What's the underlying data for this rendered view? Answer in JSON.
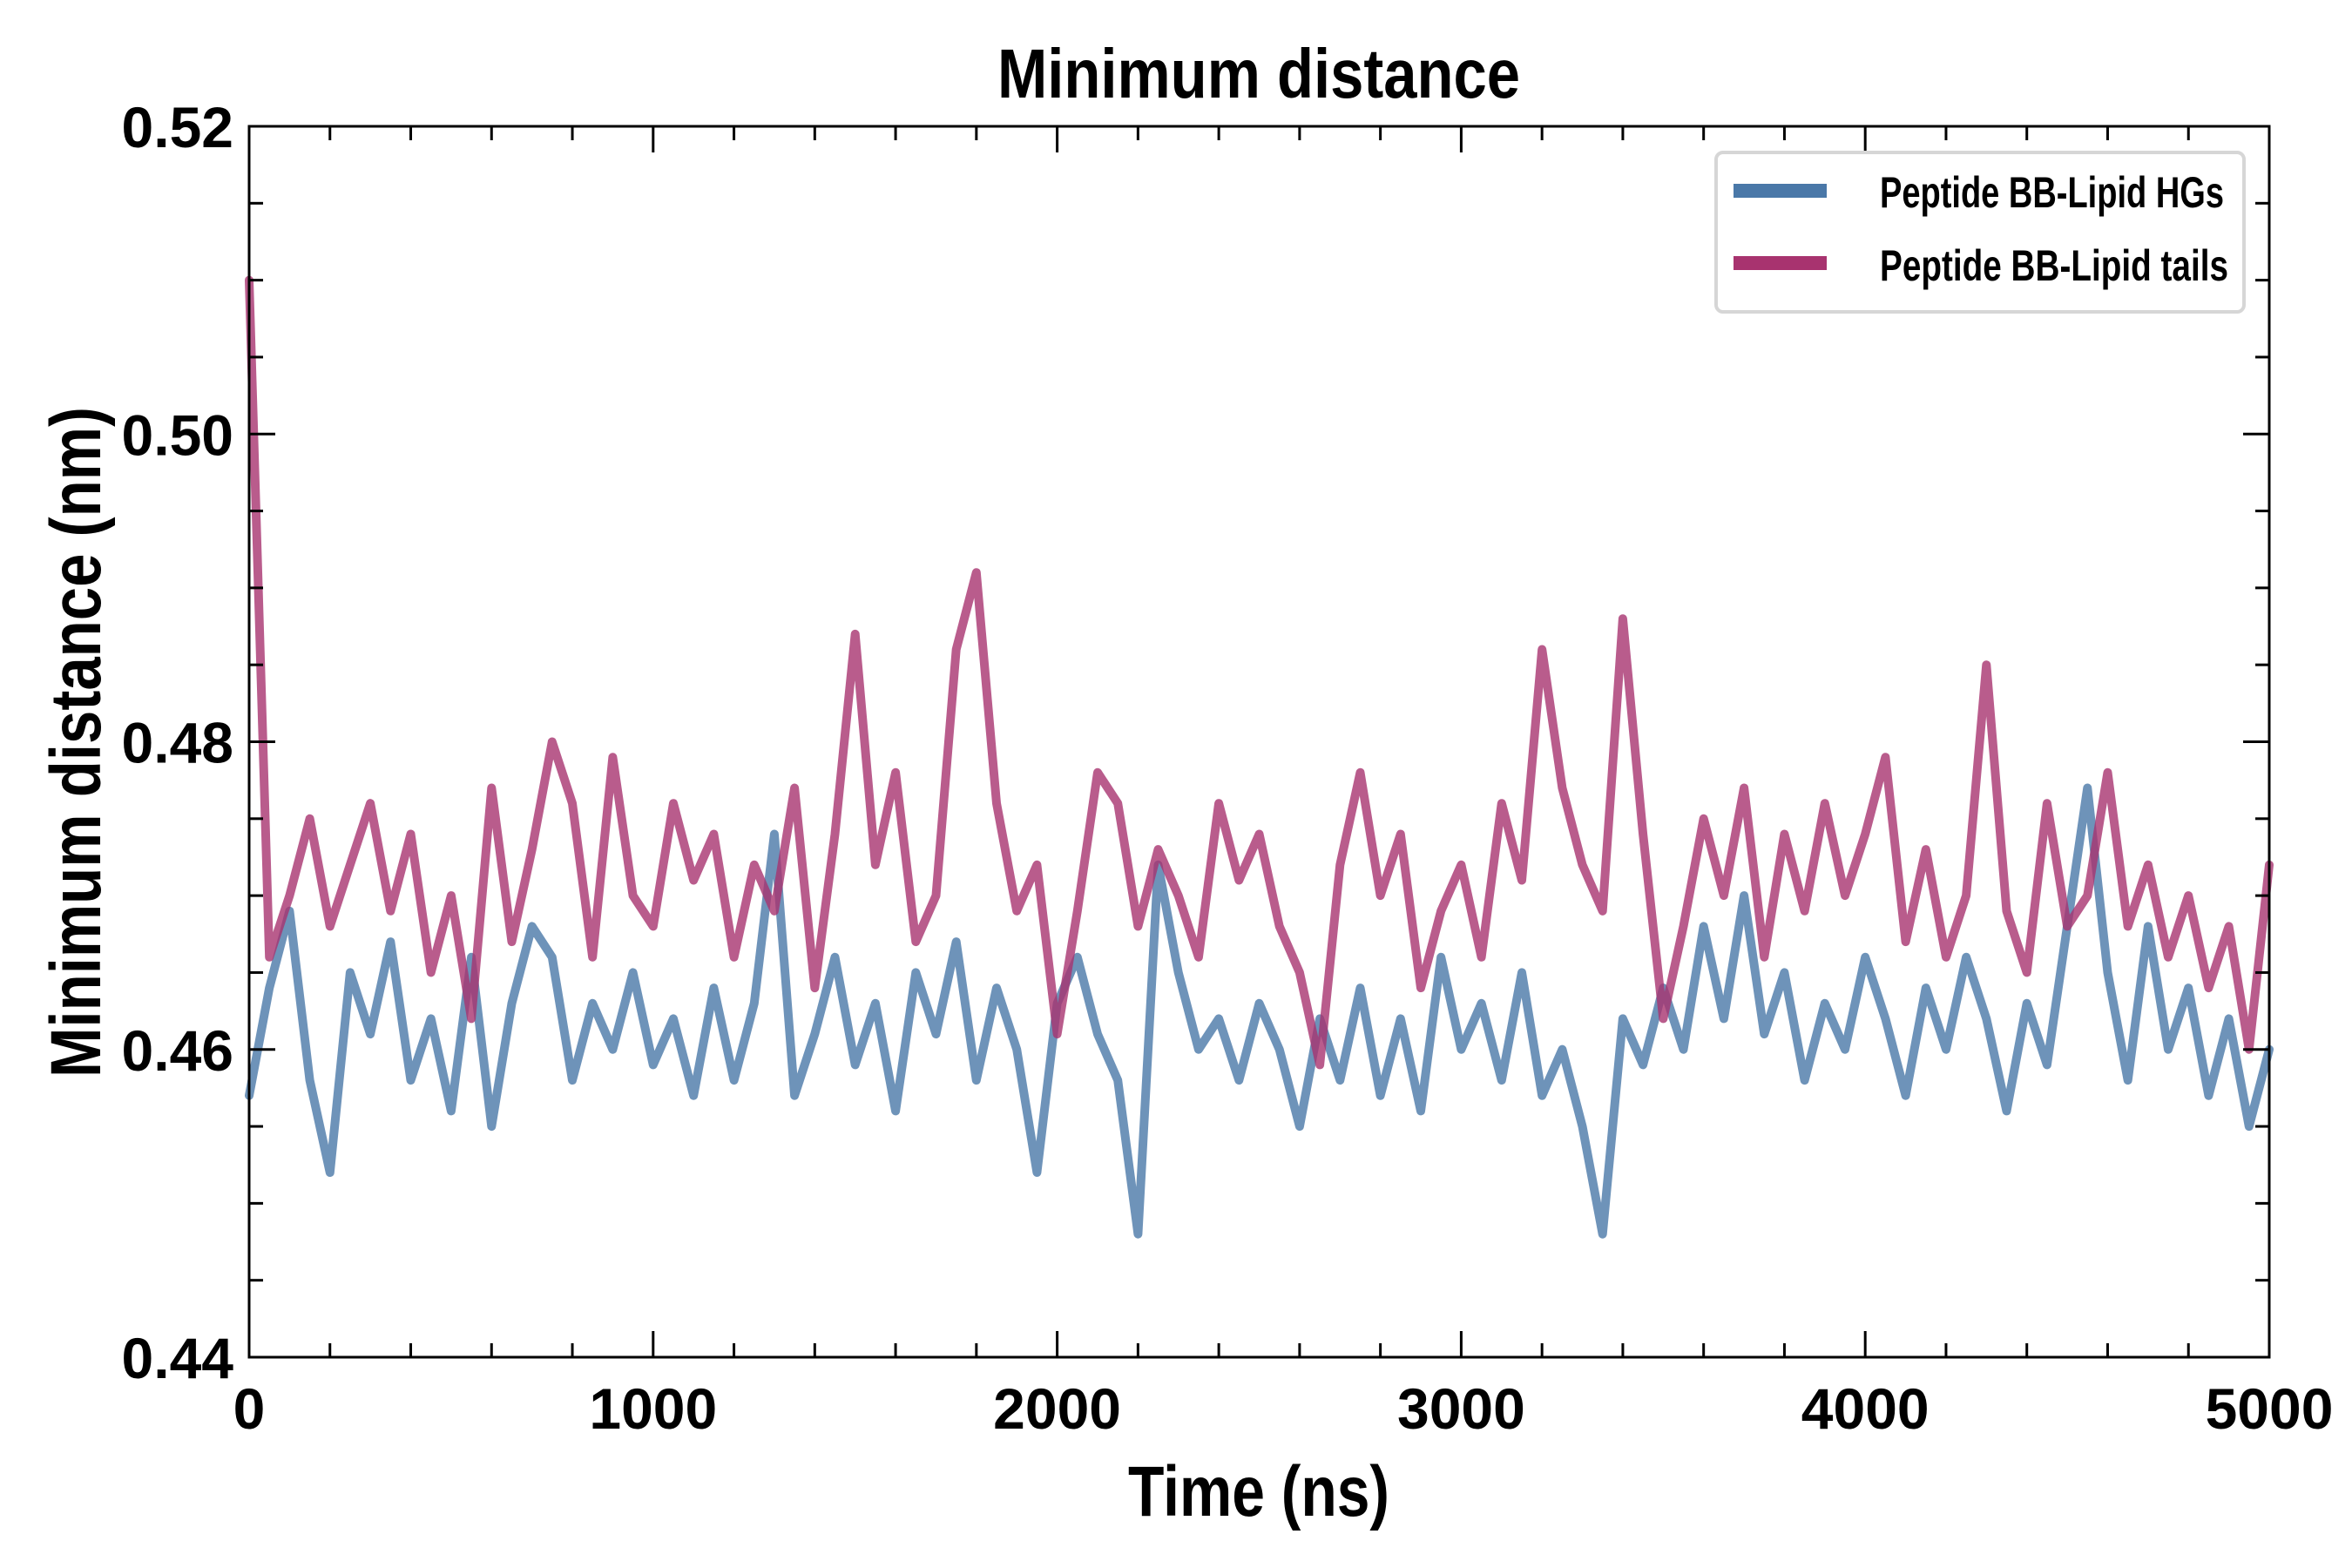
{
  "chart_data": {
    "type": "line",
    "title": "Minimum distance",
    "xlabel": "Time (ns)",
    "ylabel": "Minimum distance (nm)",
    "xlim": [
      0,
      5000
    ],
    "ylim": [
      0.44,
      0.52
    ],
    "x_ticks": [
      0,
      1000,
      2000,
      3000,
      4000,
      5000
    ],
    "x_tick_labels": [
      "0",
      "1000",
      "2000",
      "3000",
      "4000",
      "5000"
    ],
    "y_ticks": [
      0.44,
      0.46,
      0.48,
      0.5,
      0.52
    ],
    "y_tick_labels": [
      "0.44",
      "0.46",
      "0.48",
      "0.50",
      "0.52"
    ],
    "x_minor_step": 200,
    "y_minor_step": 0.005,
    "grid": false,
    "legend_position": "top-right",
    "x_step": 50,
    "series": [
      {
        "name": "Peptide BB-Lipid HGs",
        "color": "#4a78a8",
        "values": [
          0.457,
          0.464,
          0.469,
          0.458,
          0.452,
          0.465,
          0.461,
          0.467,
          0.458,
          0.462,
          0.456,
          0.466,
          0.455,
          0.463,
          0.468,
          0.466,
          0.458,
          0.463,
          0.46,
          0.465,
          0.459,
          0.462,
          0.457,
          0.464,
          0.458,
          0.463,
          0.474,
          0.457,
          0.461,
          0.466,
          0.459,
          0.463,
          0.456,
          0.465,
          0.461,
          0.467,
          0.458,
          0.464,
          0.46,
          0.452,
          0.463,
          0.466,
          0.461,
          0.458,
          0.448,
          0.472,
          0.465,
          0.46,
          0.462,
          0.458,
          0.463,
          0.46,
          0.455,
          0.462,
          0.458,
          0.464,
          0.457,
          0.462,
          0.456,
          0.466,
          0.46,
          0.463,
          0.458,
          0.465,
          0.457,
          0.46,
          0.455,
          0.448,
          0.462,
          0.459,
          0.464,
          0.46,
          0.468,
          0.462,
          0.47,
          0.461,
          0.465,
          0.458,
          0.463,
          0.46,
          0.466,
          0.462,
          0.457,
          0.464,
          0.46,
          0.466,
          0.462,
          0.456,
          0.463,
          0.459,
          0.468,
          0.477,
          0.465,
          0.458,
          0.468,
          0.46,
          0.464,
          0.457,
          0.462,
          0.455,
          0.46
        ]
      },
      {
        "name": "Peptide BB-Lipid tails",
        "color": "#a8336f",
        "values": [
          0.51,
          0.466,
          0.47,
          0.475,
          0.468,
          0.472,
          0.476,
          0.469,
          0.474,
          0.465,
          0.47,
          0.462,
          0.477,
          0.467,
          0.473,
          0.48,
          0.476,
          0.466,
          0.479,
          0.47,
          0.468,
          0.476,
          0.471,
          0.474,
          0.466,
          0.472,
          0.469,
          0.477,
          0.464,
          0.474,
          0.487,
          0.472,
          0.478,
          0.467,
          0.47,
          0.486,
          0.491,
          0.476,
          0.469,
          0.472,
          0.461,
          0.469,
          0.478,
          0.476,
          0.468,
          0.473,
          0.47,
          0.466,
          0.476,
          0.471,
          0.474,
          0.468,
          0.465,
          0.459,
          0.472,
          0.478,
          0.47,
          0.474,
          0.464,
          0.469,
          0.472,
          0.466,
          0.476,
          0.471,
          0.486,
          0.477,
          0.472,
          0.469,
          0.488,
          0.474,
          0.462,
          0.468,
          0.475,
          0.47,
          0.477,
          0.466,
          0.474,
          0.469,
          0.476,
          0.47,
          0.474,
          0.479,
          0.467,
          0.473,
          0.466,
          0.47,
          0.485,
          0.469,
          0.465,
          0.476,
          0.468,
          0.47,
          0.478,
          0.468,
          0.472,
          0.466,
          0.47,
          0.464,
          0.468,
          0.46,
          0.472
        ]
      }
    ]
  }
}
